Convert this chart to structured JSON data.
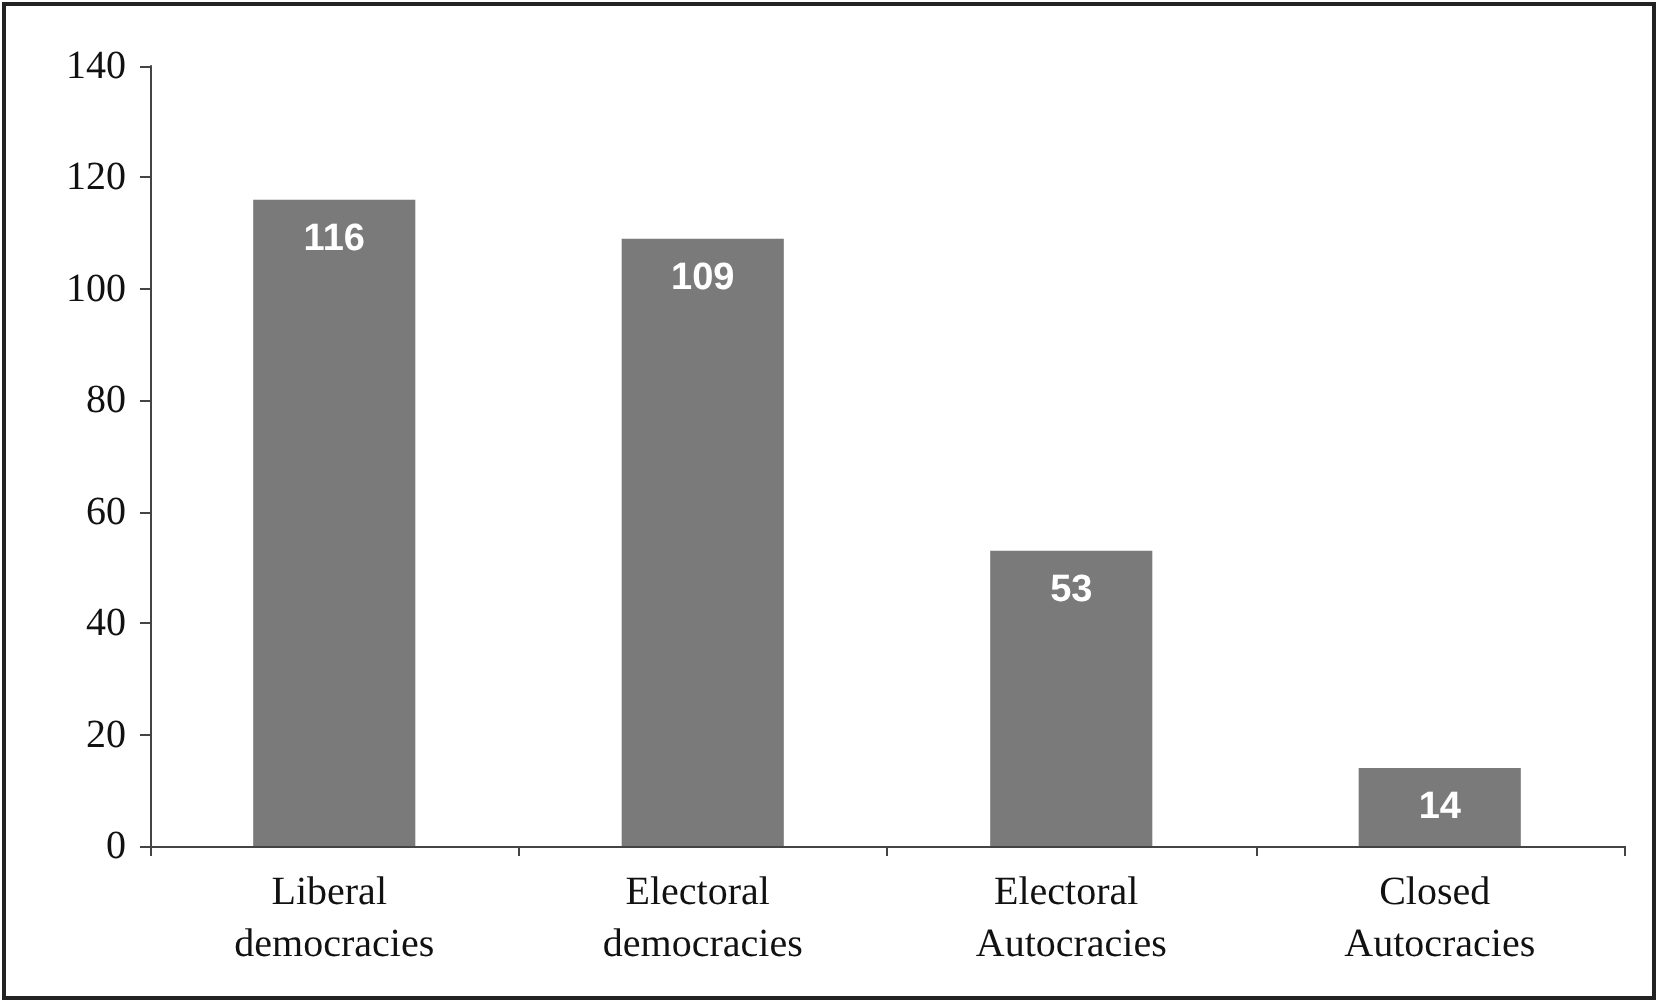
{
  "chart_data": {
    "type": "bar",
    "categories": [
      "Liberal democracies",
      "Electoral democracies",
      "Electoral Autocracies",
      "Closed Autocracies"
    ],
    "values": [
      116,
      109,
      53,
      14
    ],
    "color": "#7a7a7a",
    "ylim": [
      0,
      140
    ],
    "yticks": [
      0,
      20,
      40,
      60,
      80,
      100,
      120,
      140
    ],
    "grid": false,
    "data_labels": true
  }
}
